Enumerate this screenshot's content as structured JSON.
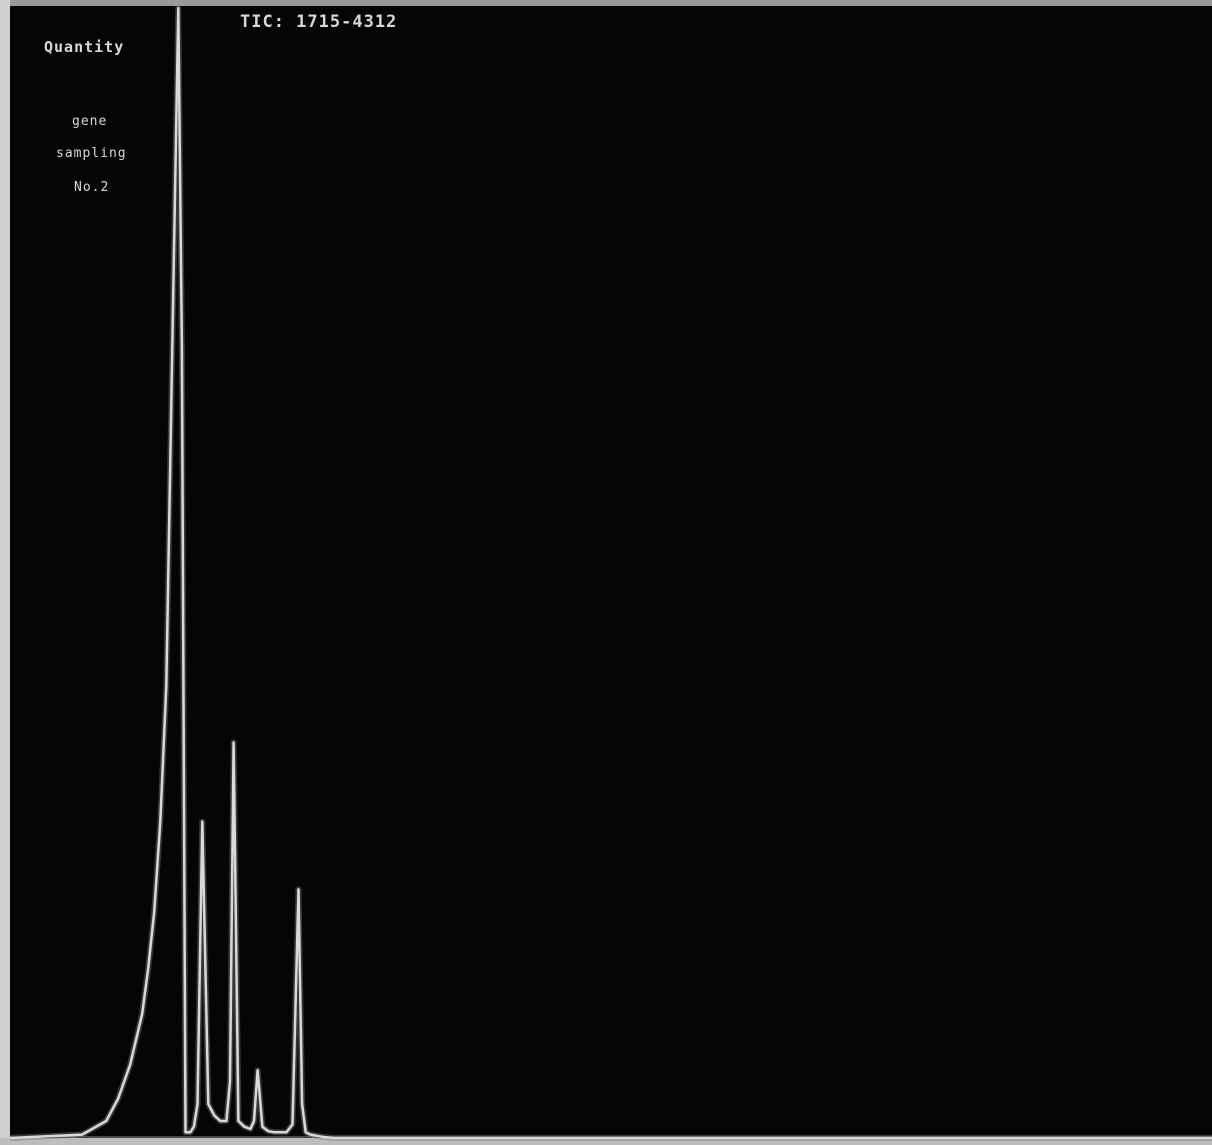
{
  "chart_data": {
    "type": "line",
    "title": "TIC: 1715-4312",
    "ylabel": "Quantity",
    "xlabel": "",
    "annotations": [
      "gene",
      "sampling",
      "No.2"
    ],
    "grid": false,
    "legend": "none",
    "xlim": [
      0,
      100
    ],
    "ylim": [
      0,
      100
    ],
    "series": [
      {
        "color": "#d9d9d9",
        "x": [
          0,
          6,
          8,
          9,
          10,
          11,
          11.5,
          12,
          12.5,
          13,
          13.5,
          14,
          14.3,
          14.6,
          15,
          15.3,
          15.6,
          16,
          16.5,
          17,
          17.5,
          18,
          18.3,
          18.6,
          19,
          19.5,
          20,
          20.3,
          20.6,
          21,
          21.5,
          22,
          23,
          23.5,
          24,
          24.3,
          24.6,
          25,
          25.5,
          26,
          27,
          30,
          100
        ],
        "y": [
          0,
          0.3,
          1.5,
          3.5,
          6.5,
          11,
          15,
          20,
          28,
          40,
          70,
          100,
          70,
          0.5,
          0.5,
          1,
          3,
          28,
          3,
          2,
          1.5,
          1.5,
          5,
          35,
          1.5,
          1,
          0.8,
          1.5,
          6,
          1,
          0.6,
          0.5,
          0.5,
          1.2,
          22,
          3,
          0.5,
          0.3,
          0.2,
          0.1,
          0,
          0,
          0
        ]
      }
    ]
  }
}
